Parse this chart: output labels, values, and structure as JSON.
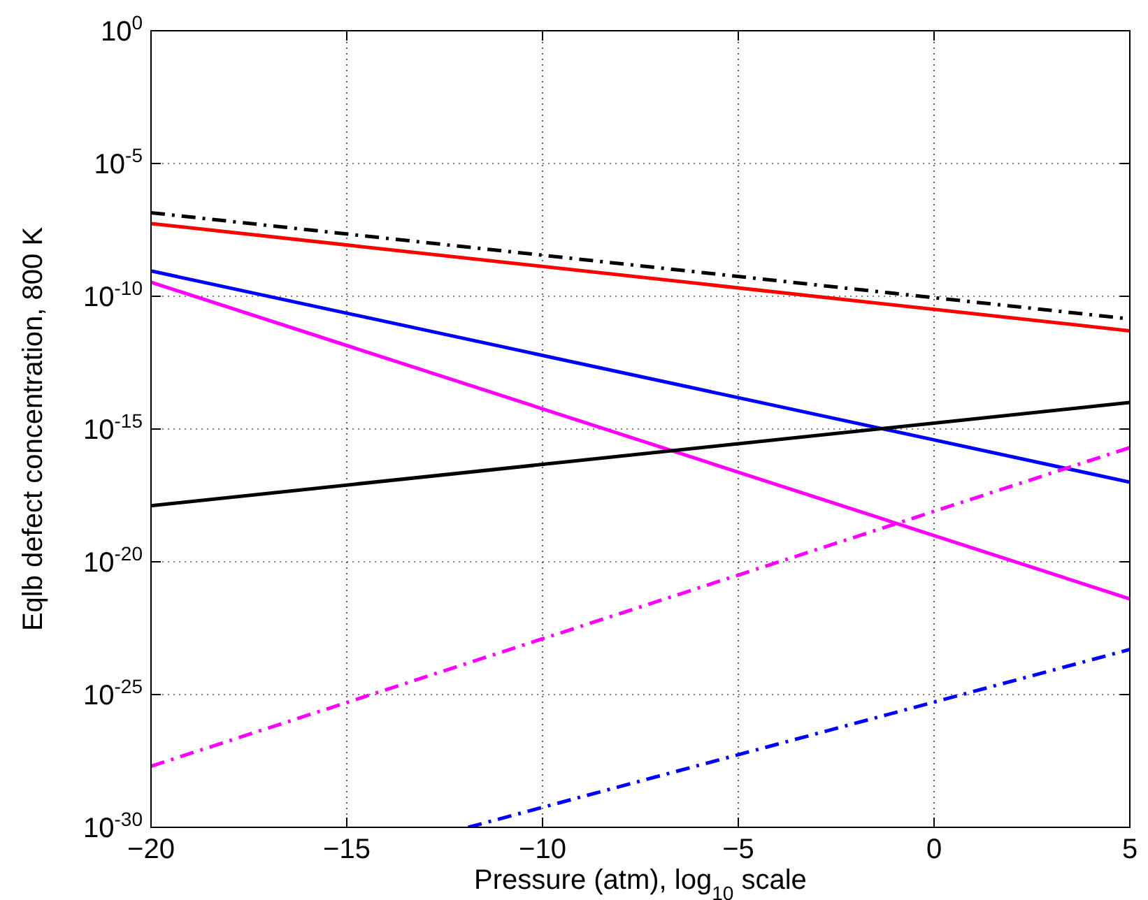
{
  "chart_data": {
    "type": "line",
    "xlabel": "Pressure (atm), log$_{10}$ scale",
    "ylabel": "Eqlb defect concentration, 800 K",
    "log": "y",
    "grid": true,
    "xlim": [
      -20,
      5
    ],
    "xticks": [
      -20,
      -15,
      -10,
      -5,
      0,
      5
    ],
    "ylim": [
      1e-30,
      1
    ],
    "yticks": [
      {
        "value": 1e-30,
        "label": "10$^{-30}$"
      },
      {
        "value": 1e-25,
        "label": "10$^{-25}$"
      },
      {
        "value": 1e-20,
        "label": "10$^{-20}$"
      },
      {
        "value": 1e-15,
        "label": "10$^{-15}$"
      },
      {
        "value": 1e-10,
        "label": "10$^{-10}$"
      },
      {
        "value": 1e-05,
        "label": "10$^{-5}$"
      },
      {
        "value": 1,
        "label": "10$^{0}$"
      }
    ],
    "series": [
      {
        "color": "#000000",
        "line_style": "dashed",
        "x": [
          -20,
          5
        ],
        "values": [
          1.4e-07,
          1.4e-11
        ]
      },
      {
        "color": "#ff0000",
        "line_style": "solid",
        "x": [
          -20,
          5
        ],
        "values": [
          5.5e-08,
          5e-12
        ]
      },
      {
        "color": "#0000ff",
        "line_style": "solid",
        "x": [
          -20,
          5
        ],
        "values": [
          9e-10,
          1e-17
        ]
      },
      {
        "color": "#ff00ff",
        "line_style": "solid",
        "x": [
          -20,
          5
        ],
        "values": [
          3.4e-10,
          4e-22
        ]
      },
      {
        "color": "#000000",
        "line_style": "solid",
        "x": [
          -20,
          5
        ],
        "values": [
          1.3e-18,
          1e-14
        ]
      },
      {
        "color": "#ff00ff",
        "line_style": "dashed",
        "x": [
          -20,
          5
        ],
        "values": [
          2e-28,
          2e-16
        ]
      },
      {
        "color": "#0000ff",
        "line_style": "dashed",
        "x": [
          -11.9,
          5
        ],
        "values": [
          1e-30,
          5e-24
        ]
      }
    ]
  }
}
